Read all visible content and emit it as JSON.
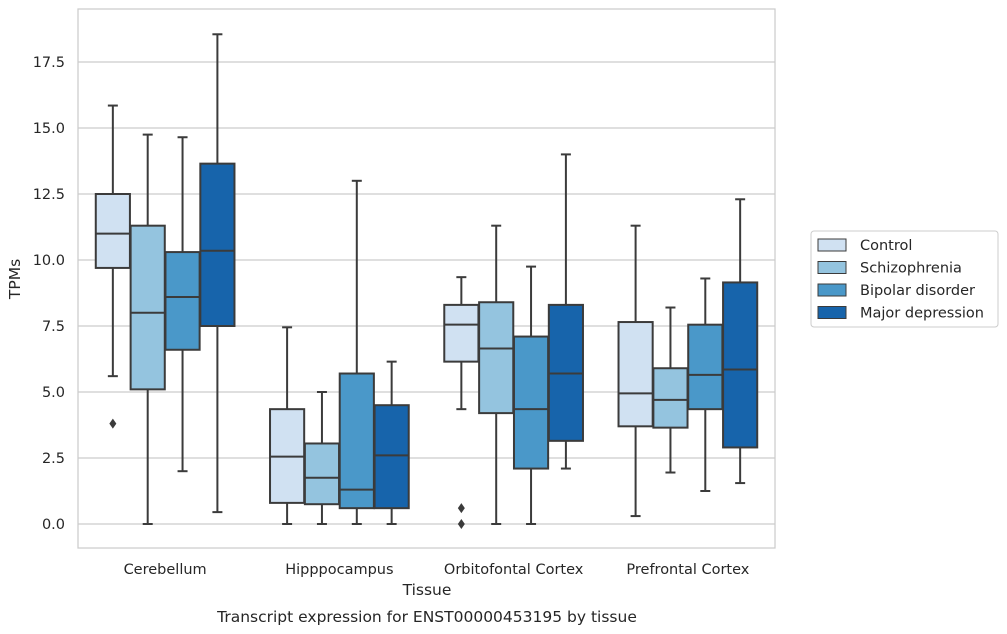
{
  "caption": "Transcript expression for ENST00000453195 by tissue",
  "chart_data": {
    "type": "box",
    "xlabel": "Tissue",
    "ylabel": "TPMs",
    "ylim": [
      -0.9,
      19.5
    ],
    "yticks": [
      "0.0",
      "2.5",
      "5.0",
      "7.5",
      "10.0",
      "12.5",
      "15.0",
      "17.5"
    ],
    "grid": "horizontal",
    "legend_position": "right",
    "categories": [
      "Cerebellum",
      "Hipppocampus",
      "Orbitofontal Cortex",
      "Prefrontal Cortex"
    ],
    "series": [
      {
        "name": "Control",
        "color": "#d0e1f2",
        "boxes": [
          {
            "min": 5.6,
            "q1": 9.7,
            "median": 11.0,
            "q3": 12.5,
            "max": 15.85,
            "outliers": [
              3.8
            ]
          },
          {
            "min": 0.0,
            "q1": 0.8,
            "median": 2.55,
            "q3": 4.35,
            "max": 7.45,
            "outliers": []
          },
          {
            "min": 4.35,
            "q1": 6.15,
            "median": 7.55,
            "q3": 8.3,
            "max": 9.35,
            "outliers": [
              0.6,
              0.0
            ]
          },
          {
            "min": 0.3,
            "q1": 3.7,
            "median": 4.95,
            "q3": 7.65,
            "max": 11.3,
            "outliers": []
          }
        ]
      },
      {
        "name": "Schizophrenia",
        "color": "#94c4df",
        "boxes": [
          {
            "min": 0.0,
            "q1": 5.1,
            "median": 8.0,
            "q3": 11.3,
            "max": 14.75,
            "outliers": []
          },
          {
            "min": 0.0,
            "q1": 0.75,
            "median": 1.75,
            "q3": 3.05,
            "max": 5.0,
            "outliers": []
          },
          {
            "min": 0.0,
            "q1": 4.2,
            "median": 6.65,
            "q3": 8.4,
            "max": 11.3,
            "outliers": []
          },
          {
            "min": 1.95,
            "q1": 3.65,
            "median": 4.7,
            "q3": 5.9,
            "max": 8.2,
            "outliers": []
          }
        ]
      },
      {
        "name": "Bipolar disorder",
        "color": "#4a98c9",
        "boxes": [
          {
            "min": 2.0,
            "q1": 6.6,
            "median": 8.6,
            "q3": 10.3,
            "max": 14.65,
            "outliers": []
          },
          {
            "min": 0.0,
            "q1": 0.6,
            "median": 1.3,
            "q3": 5.7,
            "max": 13.0,
            "outliers": []
          },
          {
            "min": 0.0,
            "q1": 2.1,
            "median": 4.35,
            "q3": 7.1,
            "max": 9.75,
            "outliers": []
          },
          {
            "min": 1.25,
            "q1": 4.35,
            "median": 5.65,
            "q3": 7.55,
            "max": 9.3,
            "outliers": []
          }
        ]
      },
      {
        "name": "Major depression",
        "color": "#1764ab",
        "boxes": [
          {
            "min": 0.45,
            "q1": 7.5,
            "median": 10.35,
            "q3": 13.65,
            "max": 18.55,
            "outliers": []
          },
          {
            "min": 0.0,
            "q1": 0.6,
            "median": 2.6,
            "q3": 4.5,
            "max": 6.15,
            "outliers": []
          },
          {
            "min": 2.1,
            "q1": 3.15,
            "median": 5.7,
            "q3": 8.3,
            "max": 14.0,
            "outliers": []
          },
          {
            "min": 1.55,
            "q1": 2.9,
            "median": 5.85,
            "q3": 9.15,
            "max": 12.3,
            "outliers": []
          }
        ]
      }
    ]
  }
}
